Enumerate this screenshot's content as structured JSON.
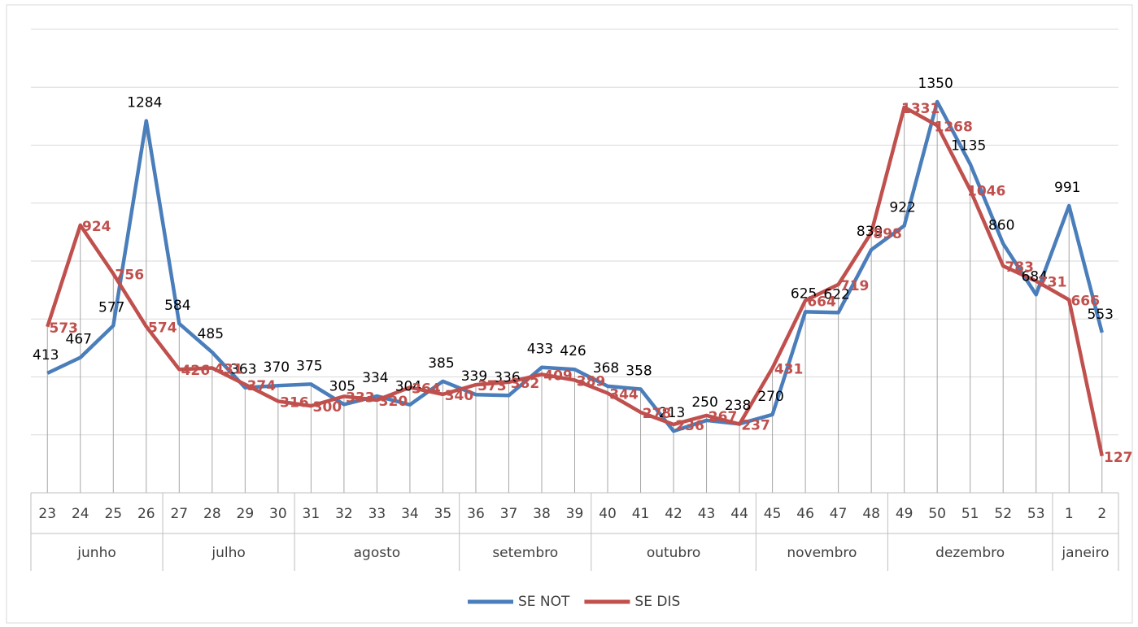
{
  "chart_data": {
    "type": "line",
    "categories": [
      "23",
      "24",
      "25",
      "26",
      "27",
      "28",
      "29",
      "30",
      "31",
      "32",
      "33",
      "34",
      "35",
      "36",
      "37",
      "38",
      "39",
      "40",
      "41",
      "42",
      "43",
      "44",
      "45",
      "46",
      "47",
      "48",
      "49",
      "50",
      "51",
      "52",
      "53",
      "1",
      "2"
    ],
    "groups": [
      {
        "label": "junho",
        "n": 4
      },
      {
        "label": "julho",
        "n": 4
      },
      {
        "label": "agosto",
        "n": 5
      },
      {
        "label": "setembro",
        "n": 4
      },
      {
        "label": "outubro",
        "n": 5
      },
      {
        "label": "novembro",
        "n": 4
      },
      {
        "label": "dezembro",
        "n": 5
      },
      {
        "label": "janeiro",
        "n": 2
      }
    ],
    "series": [
      {
        "name": "SE NOT",
        "color": "#4a7ebb",
        "values": [
          413,
          467,
          577,
          1284,
          584,
          485,
          363,
          370,
          375,
          305,
          334,
          304,
          385,
          339,
          336,
          433,
          426,
          368,
          358,
          213,
          250,
          238,
          270,
          625,
          622,
          839,
          922,
          1350,
          1135,
          860,
          684,
          991,
          553
        ]
      },
      {
        "name": "SE DIS",
        "color": "#c0504d",
        "values": [
          573,
          924,
          756,
          574,
          426,
          431,
          374,
          316,
          300,
          333,
          320,
          364,
          340,
          373,
          382,
          409,
          389,
          344,
          278,
          236,
          267,
          237,
          431,
          664,
          719,
          898,
          1331,
          1268,
          1046,
          783,
          731,
          666,
          127
        ]
      }
    ],
    "ylim": [
      0,
      1600
    ],
    "yticks": [
      0,
      200,
      400,
      600,
      800,
      1000,
      1200,
      1400,
      1600
    ],
    "grid": true,
    "legend": "bottom"
  }
}
